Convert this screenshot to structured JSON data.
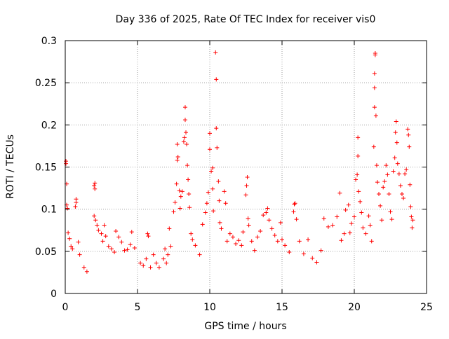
{
  "chart_data": {
    "type": "scatter",
    "title": "Day 336 of 2025, Rate Of TEC Index for receiver vis0",
    "xlabel": "GPS time / hours",
    "ylabel": "ROTI / TECUs",
    "xlim": [
      0,
      25
    ],
    "ylim": [
      0,
      0.3
    ],
    "xticks": [
      "0",
      "5",
      "10",
      "15",
      "20",
      "25"
    ],
    "yticks": [
      "0",
      "0.05",
      "0.1",
      "0.15",
      "0.2",
      "0.25",
      "0.3"
    ],
    "xtick_values": [
      0,
      5,
      10,
      15,
      20,
      25
    ],
    "ytick_values": [
      0,
      0.05,
      0.1,
      0.15,
      0.2,
      0.25,
      0.3
    ],
    "grid": true,
    "marker": "+",
    "color": "#ff0000",
    "series": [
      {
        "name": "vis0",
        "points": [
          [
            0.05,
            0.157
          ],
          [
            0.05,
            0.154
          ],
          [
            0.1,
            0.13
          ],
          [
            0.1,
            0.105
          ],
          [
            0.15,
            0.101
          ],
          [
            0.2,
            0.072
          ],
          [
            0.3,
            0.065
          ],
          [
            0.4,
            0.056
          ],
          [
            0.5,
            0.053
          ],
          [
            0.7,
            0.103
          ],
          [
            0.75,
            0.108
          ],
          [
            0.75,
            0.112
          ],
          [
            0.9,
            0.061
          ],
          [
            1.0,
            0.046
          ],
          [
            1.3,
            0.031
          ],
          [
            1.5,
            0.026
          ],
          [
            2.0,
            0.128
          ],
          [
            2.05,
            0.131
          ],
          [
            2.05,
            0.124
          ],
          [
            2.0,
            0.092
          ],
          [
            2.1,
            0.087
          ],
          [
            2.2,
            0.081
          ],
          [
            2.3,
            0.075
          ],
          [
            2.5,
            0.071
          ],
          [
            2.6,
            0.062
          ],
          [
            2.7,
            0.081
          ],
          [
            2.8,
            0.068
          ],
          [
            3.0,
            0.056
          ],
          [
            3.2,
            0.053
          ],
          [
            3.4,
            0.049
          ],
          [
            3.5,
            0.074
          ],
          [
            3.7,
            0.067
          ],
          [
            3.9,
            0.061
          ],
          [
            4.1,
            0.051
          ],
          [
            4.3,
            0.052
          ],
          [
            4.5,
            0.058
          ],
          [
            4.6,
            0.073
          ],
          [
            4.8,
            0.054
          ],
          [
            5.2,
            0.036
          ],
          [
            5.4,
            0.033
          ],
          [
            5.6,
            0.041
          ],
          [
            5.7,
            0.071
          ],
          [
            5.75,
            0.068
          ],
          [
            5.9,
            0.031
          ],
          [
            6.1,
            0.046
          ],
          [
            6.3,
            0.036
          ],
          [
            6.5,
            0.031
          ],
          [
            6.8,
            0.041
          ],
          [
            6.9,
            0.053
          ],
          [
            7.0,
            0.036
          ],
          [
            7.1,
            0.046
          ],
          [
            7.2,
            0.077
          ],
          [
            7.3,
            0.056
          ],
          [
            7.5,
            0.097
          ],
          [
            7.6,
            0.108
          ],
          [
            7.7,
            0.13
          ],
          [
            7.75,
            0.158
          ],
          [
            7.75,
            0.177
          ],
          [
            7.8,
            0.162
          ],
          [
            7.9,
            0.122
          ],
          [
            7.95,
            0.101
          ],
          [
            8.0,
            0.115
          ],
          [
            8.1,
            0.121
          ],
          [
            8.2,
            0.18
          ],
          [
            8.25,
            0.185
          ],
          [
            8.3,
            0.221
          ],
          [
            8.3,
            0.206
          ],
          [
            8.35,
            0.191
          ],
          [
            8.4,
            0.177
          ],
          [
            8.45,
            0.152
          ],
          [
            8.5,
            0.135
          ],
          [
            8.55,
            0.118
          ],
          [
            8.6,
            0.102
          ],
          [
            8.7,
            0.071
          ],
          [
            8.8,
            0.064
          ],
          [
            9.0,
            0.057
          ],
          [
            9.3,
            0.046
          ],
          [
            9.5,
            0.082
          ],
          [
            9.7,
            0.096
          ],
          [
            9.8,
            0.107
          ],
          [
            9.9,
            0.12
          ],
          [
            10.0,
            0.171
          ],
          [
            10.0,
            0.19
          ],
          [
            10.1,
            0.145
          ],
          [
            10.2,
            0.149
          ],
          [
            10.2,
            0.124
          ],
          [
            10.25,
            0.098
          ],
          [
            10.4,
            0.286
          ],
          [
            10.45,
            0.254
          ],
          [
            10.45,
            0.196
          ],
          [
            10.5,
            0.173
          ],
          [
            10.6,
            0.133
          ],
          [
            10.65,
            0.11
          ],
          [
            10.7,
            0.084
          ],
          [
            10.8,
            0.077
          ],
          [
            11.0,
            0.121
          ],
          [
            11.1,
            0.107
          ],
          [
            11.2,
            0.062
          ],
          [
            11.4,
            0.071
          ],
          [
            11.6,
            0.067
          ],
          [
            11.8,
            0.059
          ],
          [
            12.0,
            0.063
          ],
          [
            12.2,
            0.057
          ],
          [
            12.3,
            0.073
          ],
          [
            12.5,
            0.117
          ],
          [
            12.55,
            0.128
          ],
          [
            12.6,
            0.138
          ],
          [
            12.65,
            0.089
          ],
          [
            12.7,
            0.081
          ],
          [
            12.9,
            0.062
          ],
          [
            13.1,
            0.051
          ],
          [
            13.3,
            0.067
          ],
          [
            13.5,
            0.074
          ],
          [
            13.7,
            0.093
          ],
          [
            13.9,
            0.096
          ],
          [
            14.0,
            0.101
          ],
          [
            14.1,
            0.087
          ],
          [
            14.3,
            0.077
          ],
          [
            14.5,
            0.069
          ],
          [
            14.7,
            0.062
          ],
          [
            14.9,
            0.084
          ],
          [
            15.0,
            0.064
          ],
          [
            15.2,
            0.057
          ],
          [
            15.5,
            0.049
          ],
          [
            15.8,
            0.097
          ],
          [
            15.85,
            0.106
          ],
          [
            15.9,
            0.107
          ],
          [
            16.0,
            0.088
          ],
          [
            16.2,
            0.062
          ],
          [
            16.5,
            0.047
          ],
          [
            16.8,
            0.064
          ],
          [
            17.1,
            0.042
          ],
          [
            17.4,
            0.037
          ],
          [
            17.7,
            0.051
          ],
          [
            17.9,
            0.089
          ],
          [
            18.2,
            0.079
          ],
          [
            18.5,
            0.081
          ],
          [
            18.8,
            0.091
          ],
          [
            19.0,
            0.119
          ],
          [
            19.1,
            0.063
          ],
          [
            19.3,
            0.071
          ],
          [
            19.4,
            0.099
          ],
          [
            19.6,
            0.105
          ],
          [
            19.7,
            0.072
          ],
          [
            19.8,
            0.083
          ],
          [
            20.0,
            0.091
          ],
          [
            20.1,
            0.135
          ],
          [
            20.2,
            0.141
          ],
          [
            20.25,
            0.163
          ],
          [
            20.25,
            0.185
          ],
          [
            20.3,
            0.121
          ],
          [
            20.4,
            0.109
          ],
          [
            20.5,
            0.096
          ],
          [
            20.6,
            0.078
          ],
          [
            20.8,
            0.071
          ],
          [
            21.0,
            0.092
          ],
          [
            21.1,
            0.081
          ],
          [
            21.2,
            0.062
          ],
          [
            21.35,
            0.174
          ],
          [
            21.4,
            0.221
          ],
          [
            21.4,
            0.244
          ],
          [
            21.4,
            0.261
          ],
          [
            21.45,
            0.283
          ],
          [
            21.45,
            0.285
          ],
          [
            21.5,
            0.211
          ],
          [
            21.55,
            0.152
          ],
          [
            21.6,
            0.132
          ],
          [
            21.7,
            0.118
          ],
          [
            21.8,
            0.104
          ],
          [
            21.9,
            0.087
          ],
          [
            22.0,
            0.126
          ],
          [
            22.1,
            0.133
          ],
          [
            22.2,
            0.152
          ],
          [
            22.3,
            0.141
          ],
          [
            22.4,
            0.118
          ],
          [
            22.5,
            0.097
          ],
          [
            22.6,
            0.088
          ],
          [
            22.7,
            0.145
          ],
          [
            22.8,
            0.161
          ],
          [
            22.85,
            0.191
          ],
          [
            22.9,
            0.204
          ],
          [
            22.95,
            0.179
          ],
          [
            23.0,
            0.154
          ],
          [
            23.1,
            0.142
          ],
          [
            23.2,
            0.128
          ],
          [
            23.3,
            0.118
          ],
          [
            23.4,
            0.113
          ],
          [
            23.5,
            0.142
          ],
          [
            23.6,
            0.147
          ],
          [
            23.7,
            0.195
          ],
          [
            23.75,
            0.188
          ],
          [
            23.8,
            0.174
          ],
          [
            23.85,
            0.129
          ],
          [
            23.9,
            0.103
          ],
          [
            23.95,
            0.091
          ],
          [
            24.0,
            0.078
          ],
          [
            24.05,
            0.087
          ]
        ]
      }
    ]
  }
}
